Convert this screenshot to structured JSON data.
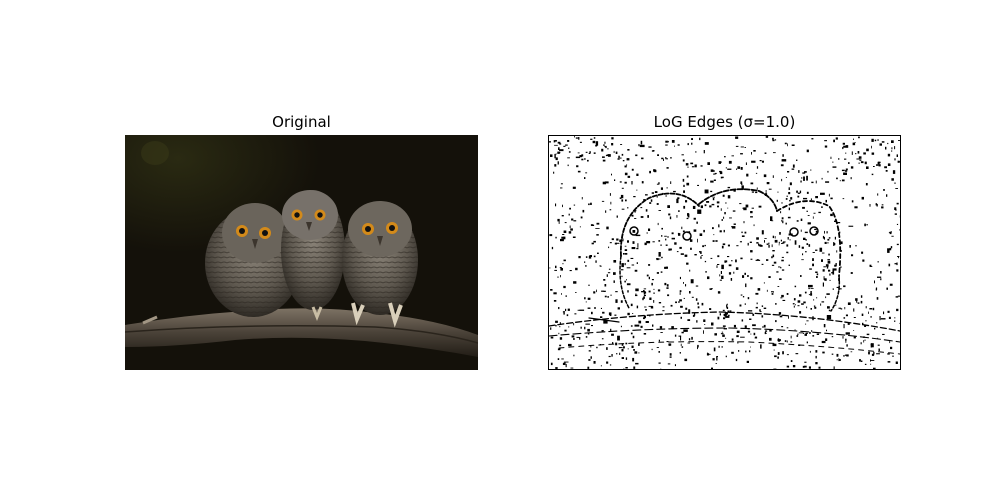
{
  "panels": [
    {
      "title": "Original"
    },
    {
      "title": "LoG Edges (σ=1.0)"
    }
  ]
}
